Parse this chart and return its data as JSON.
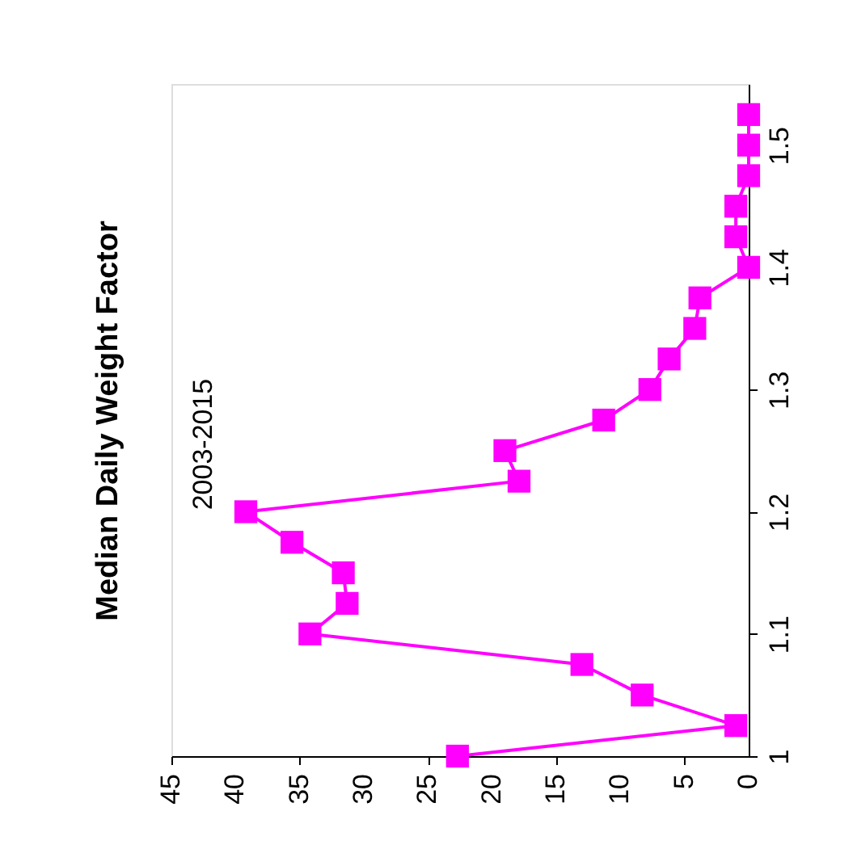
{
  "chart_data": {
    "type": "line",
    "ylabel": "Median Daily Weight Factor",
    "annotations": [
      "2003-2015"
    ],
    "series": [
      {
        "color": "#ff00ff",
        "x": [
          22.7,
          1,
          8.3,
          13,
          34.2,
          31.3,
          31.6,
          35.6,
          39.2,
          17.9,
          19,
          11.3,
          7.7,
          6.2,
          4.2,
          3.8,
          0,
          1,
          1,
          0,
          0,
          0
        ],
        "values": [
          1.0,
          1.025,
          1.05,
          1.075,
          1.1,
          1.125,
          1.15,
          1.175,
          1.2,
          1.225,
          1.25,
          1.275,
          1.3,
          1.325,
          1.35,
          1.375,
          1.4,
          1.425,
          1.45,
          1.475,
          1.5,
          1.525
        ]
      }
    ],
    "xlim": [
      45,
      0
    ],
    "xticks": [
      45,
      40,
      35,
      30,
      25,
      20,
      15,
      10,
      5,
      0
    ],
    "ylim": [
      1,
      1.55
    ],
    "yticks": [
      1,
      1.1,
      1.2,
      1.3,
      1.4,
      1.5
    ],
    "marker": "square",
    "line_style": "solid",
    "grid": false,
    "legend": false
  }
}
